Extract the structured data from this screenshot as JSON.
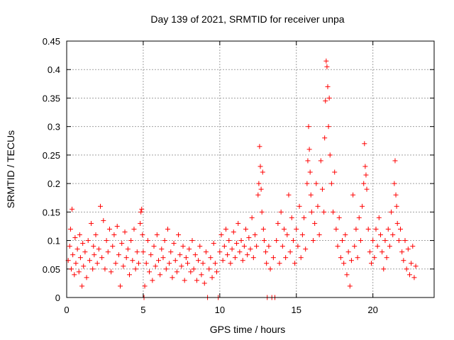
{
  "chart_data": {
    "type": "scatter",
    "title": "Day 139 of 2021, SRMTID for receiver unpa",
    "xlabel": "GPS time / hours",
    "ylabel": "SRMTID / TECUs",
    "xlim": [
      0,
      24
    ],
    "ylim": [
      0,
      0.45
    ],
    "xticks": [
      0,
      5,
      10,
      15,
      20
    ],
    "xtick_labels": [
      "0",
      "5",
      "10",
      "15",
      "20"
    ],
    "yticks": [
      0,
      0.05,
      0.1,
      0.15,
      0.2,
      0.25,
      0.3,
      0.35,
      0.4,
      0.45
    ],
    "ytick_labels": [
      "0",
      "0.05",
      "0.1",
      "0.15",
      "0.2",
      "0.25",
      "0.3",
      "0.35",
      "0.4",
      "0.45"
    ],
    "grid": true,
    "marker": "plus",
    "color": "#ff0000",
    "series": [
      {
        "name": "SRMTID",
        "points": [
          [
            0.1,
            0.065
          ],
          [
            0.2,
            0.09
          ],
          [
            0.25,
            0.12
          ],
          [
            0.3,
            0.05
          ],
          [
            0.35,
            0.155
          ],
          [
            0.4,
            0.075
          ],
          [
            0.5,
            0.04
          ],
          [
            0.55,
            0.105
          ],
          [
            0.6,
            0.06
          ],
          [
            0.7,
            0.085
          ],
          [
            0.8,
            0.045
          ],
          [
            0.85,
            0.11
          ],
          [
            0.9,
            0.07
          ],
          [
            1.0,
            0.02
          ],
          [
            1.05,
            0.095
          ],
          [
            1.1,
            0.055
          ],
          [
            1.2,
            0.08
          ],
          [
            1.3,
            0.035
          ],
          [
            1.4,
            0.1
          ],
          [
            1.5,
            0.065
          ],
          [
            1.6,
            0.13
          ],
          [
            1.7,
            0.05
          ],
          [
            1.75,
            0.09
          ],
          [
            1.8,
            0.075
          ],
          [
            1.9,
            0.11
          ],
          [
            2.0,
            0.06
          ],
          [
            2.1,
            0.085
          ],
          [
            2.2,
            0.16
          ],
          [
            2.3,
            0.07
          ],
          [
            2.4,
            0.135
          ],
          [
            2.5,
            0.05
          ],
          [
            2.6,
            0.1
          ],
          [
            2.7,
            0.08
          ],
          [
            2.8,
            0.12
          ],
          [
            2.9,
            0.045
          ],
          [
            3.0,
            0.09
          ],
          [
            3.1,
            0.11
          ],
          [
            3.2,
            0.06
          ],
          [
            3.3,
            0.125
          ],
          [
            3.4,
            0.075
          ],
          [
            3.5,
            0.02
          ],
          [
            3.6,
            0.095
          ],
          [
            3.7,
            0.055
          ],
          [
            3.8,
            0.115
          ],
          [
            3.9,
            0.07
          ],
          [
            4.0,
            0.085
          ],
          [
            4.1,
            0.04
          ],
          [
            4.2,
            0.1
          ],
          [
            4.3,
            0.065
          ],
          [
            4.4,
            0.12
          ],
          [
            4.5,
            0.05
          ],
          [
            4.6,
            0.08
          ],
          [
            4.7,
            0.06
          ],
          [
            4.8,
            0.13
          ],
          [
            4.85,
            0.15
          ],
          [
            4.9,
            0.155
          ],
          [
            4.95,
            0.11
          ],
          [
            5.0,
            0.08
          ],
          [
            5.05,
            0.0
          ],
          [
            5.1,
            0.02
          ],
          [
            5.2,
            0.06
          ],
          [
            5.3,
            0.1
          ],
          [
            5.4,
            0.045
          ],
          [
            5.5,
            0.075
          ],
          [
            5.6,
            0.03
          ],
          [
            5.7,
            0.09
          ],
          [
            5.8,
            0.055
          ],
          [
            5.9,
            0.11
          ],
          [
            6.0,
            0.065
          ],
          [
            6.1,
            0.04
          ],
          [
            6.2,
            0.085
          ],
          [
            6.3,
            0.07
          ],
          [
            6.4,
            0.1
          ],
          [
            6.5,
            0.05
          ],
          [
            6.6,
            0.12
          ],
          [
            6.7,
            0.06
          ],
          [
            6.8,
            0.08
          ],
          [
            6.9,
            0.035
          ],
          [
            7.0,
            0.095
          ],
          [
            7.1,
            0.065
          ],
          [
            7.2,
            0.045
          ],
          [
            7.3,
            0.11
          ],
          [
            7.4,
            0.075
          ],
          [
            7.5,
            0.055
          ],
          [
            7.6,
            0.09
          ],
          [
            7.7,
            0.03
          ],
          [
            7.8,
            0.07
          ],
          [
            7.9,
            0.06
          ],
          [
            8.0,
            0.085
          ],
          [
            8.1,
            0.045
          ],
          [
            8.2,
            0.1
          ],
          [
            8.3,
            0.05
          ],
          [
            8.4,
            0.075
          ],
          [
            8.5,
            0.03
          ],
          [
            8.6,
            0.065
          ],
          [
            8.7,
            0.09
          ],
          [
            8.8,
            0.04
          ],
          [
            8.9,
            0.06
          ],
          [
            9.0,
            0.025
          ],
          [
            9.1,
            0.08
          ],
          [
            9.2,
            0.0
          ],
          [
            9.3,
            0.05
          ],
          [
            9.4,
            0.07
          ],
          [
            9.5,
            0.035
          ],
          [
            9.6,
            0.095
          ],
          [
            9.7,
            0.06
          ],
          [
            9.8,
            0.045
          ],
          [
            9.9,
            0.0
          ],
          [
            10.0,
            0.08
          ],
          [
            10.1,
            0.11
          ],
          [
            10.2,
            0.065
          ],
          [
            10.3,
            0.09
          ],
          [
            10.4,
            0.12
          ],
          [
            10.5,
            0.075
          ],
          [
            10.6,
            0.1
          ],
          [
            10.7,
            0.06
          ],
          [
            10.8,
            0.085
          ],
          [
            10.9,
            0.115
          ],
          [
            11.0,
            0.07
          ],
          [
            11.1,
            0.095
          ],
          [
            11.2,
            0.13
          ],
          [
            11.3,
            0.08
          ],
          [
            11.4,
            0.1
          ],
          [
            11.5,
            0.065
          ],
          [
            11.6,
            0.09
          ],
          [
            11.7,
            0.12
          ],
          [
            11.8,
            0.075
          ],
          [
            11.9,
            0.105
          ],
          [
            12.0,
            0.085
          ],
          [
            12.1,
            0.14
          ],
          [
            12.2,
            0.07
          ],
          [
            12.3,
            0.11
          ],
          [
            12.4,
            0.09
          ],
          [
            12.5,
            0.18
          ],
          [
            12.55,
            0.2
          ],
          [
            12.6,
            0.265
          ],
          [
            12.65,
            0.23
          ],
          [
            12.7,
            0.19
          ],
          [
            12.75,
            0.15
          ],
          [
            12.8,
            0.22
          ],
          [
            12.85,
            0.12
          ],
          [
            12.9,
            0.1
          ],
          [
            13.0,
            0.08
          ],
          [
            13.05,
            0.06
          ],
          [
            13.1,
            0.0
          ],
          [
            13.2,
            0.09
          ],
          [
            13.3,
            0.05
          ],
          [
            13.4,
            0.0
          ],
          [
            13.5,
            0.07
          ],
          [
            13.6,
            0.0
          ],
          [
            13.7,
            0.1
          ],
          [
            13.8,
            0.13
          ],
          [
            13.9,
            0.06
          ],
          [
            14.0,
            0.15
          ],
          [
            14.1,
            0.09
          ],
          [
            14.2,
            0.12
          ],
          [
            14.3,
            0.07
          ],
          [
            14.4,
            0.11
          ],
          [
            14.5,
            0.18
          ],
          [
            14.6,
            0.08
          ],
          [
            14.7,
            0.14
          ],
          [
            14.8,
            0.1
          ],
          [
            14.9,
            0.06
          ],
          [
            15.0,
            0.12
          ],
          [
            15.1,
            0.09
          ],
          [
            15.2,
            0.16
          ],
          [
            15.3,
            0.07
          ],
          [
            15.4,
            0.11
          ],
          [
            15.5,
            0.14
          ],
          [
            15.6,
            0.085
          ],
          [
            15.7,
            0.2
          ],
          [
            15.75,
            0.24
          ],
          [
            15.8,
            0.3
          ],
          [
            15.85,
            0.26
          ],
          [
            15.9,
            0.22
          ],
          [
            15.95,
            0.18
          ],
          [
            16.0,
            0.15
          ],
          [
            16.1,
            0.1
          ],
          [
            16.2,
            0.13
          ],
          [
            16.3,
            0.2
          ],
          [
            16.4,
            0.16
          ],
          [
            16.5,
            0.11
          ],
          [
            16.6,
            0.24
          ],
          [
            16.7,
            0.19
          ],
          [
            16.8,
            0.15
          ],
          [
            16.85,
            0.28
          ],
          [
            16.9,
            0.345
          ],
          [
            16.95,
            0.415
          ],
          [
            17.0,
            0.405
          ],
          [
            17.05,
            0.37
          ],
          [
            17.1,
            0.3
          ],
          [
            17.15,
            0.35
          ],
          [
            17.2,
            0.25
          ],
          [
            17.3,
            0.2
          ],
          [
            17.4,
            0.15
          ],
          [
            17.5,
            0.22
          ],
          [
            17.6,
            0.12
          ],
          [
            17.7,
            0.09
          ],
          [
            17.8,
            0.14
          ],
          [
            17.9,
            0.07
          ],
          [
            18.0,
            0.1
          ],
          [
            18.1,
            0.06
          ],
          [
            18.2,
            0.11
          ],
          [
            18.3,
            0.04
          ],
          [
            18.4,
            0.08
          ],
          [
            18.5,
            0.02
          ],
          [
            18.6,
            0.065
          ],
          [
            18.7,
            0.18
          ],
          [
            18.8,
            0.09
          ],
          [
            18.9,
            0.12
          ],
          [
            19.0,
            0.07
          ],
          [
            19.1,
            0.14
          ],
          [
            19.2,
            0.1
          ],
          [
            19.3,
            0.16
          ],
          [
            19.4,
            0.2
          ],
          [
            19.45,
            0.27
          ],
          [
            19.5,
            0.23
          ],
          [
            19.55,
            0.215
          ],
          [
            19.6,
            0.19
          ],
          [
            19.7,
            0.12
          ],
          [
            19.8,
            0.08
          ],
          [
            19.9,
            0.06
          ],
          [
            20.0,
            0.1
          ],
          [
            20.1,
            0.07
          ],
          [
            20.2,
            0.12
          ],
          [
            20.3,
            0.09
          ],
          [
            20.4,
            0.14
          ],
          [
            20.5,
            0.11
          ],
          [
            20.6,
            0.08
          ],
          [
            20.7,
            0.05
          ],
          [
            20.8,
            0.1
          ],
          [
            20.9,
            0.07
          ],
          [
            21.0,
            0.12
          ],
          [
            21.1,
            0.09
          ],
          [
            21.2,
            0.15
          ],
          [
            21.3,
            0.11
          ],
          [
            21.4,
            0.2
          ],
          [
            21.45,
            0.24
          ],
          [
            21.5,
            0.18
          ],
          [
            21.55,
            0.16
          ],
          [
            21.6,
            0.13
          ],
          [
            21.7,
            0.1
          ],
          [
            21.8,
            0.12
          ],
          [
            21.9,
            0.08
          ],
          [
            22.0,
            0.065
          ],
          [
            22.1,
            0.1
          ],
          [
            22.2,
            0.05
          ],
          [
            22.3,
            0.085
          ],
          [
            22.4,
            0.04
          ],
          [
            22.5,
            0.06
          ],
          [
            22.6,
            0.09
          ],
          [
            22.7,
            0.035
          ],
          [
            22.8,
            0.055
          ]
        ]
      }
    ]
  }
}
